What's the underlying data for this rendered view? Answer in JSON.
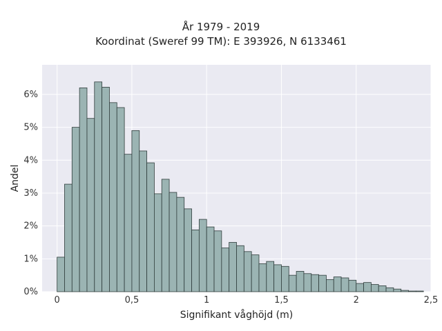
{
  "chart_data": {
    "type": "histogram",
    "title": "År 1979 - 2019",
    "subtitle": "Koordinat (Sweref 99 TM): E 393926, N 6133461",
    "xlabel": "Signifikant våghöjd (m)",
    "ylabel": "Andel",
    "xlim": [
      -0.1,
      2.5
    ],
    "ylim": [
      0,
      6.9
    ],
    "xticks": [
      0,
      0.5,
      1,
      1.5,
      2,
      2.5
    ],
    "xtick_labels": [
      "0",
      "0,5",
      "1",
      "1,5",
      "2",
      "2,5"
    ],
    "yticks": [
      0,
      1,
      2,
      3,
      4,
      5,
      6
    ],
    "ytick_labels": [
      "0%",
      "1%",
      "2%",
      "3%",
      "4%",
      "5%",
      "6%"
    ],
    "grid": true,
    "bin_width": 0.05,
    "bin_start": 0,
    "values": [
      1.05,
      3.27,
      5.0,
      6.2,
      5.27,
      6.38,
      6.22,
      5.75,
      5.6,
      4.18,
      4.9,
      4.28,
      3.92,
      2.98,
      3.42,
      3.02,
      2.87,
      2.52,
      1.88,
      2.2,
      1.97,
      1.85,
      1.33,
      1.5,
      1.4,
      1.22,
      1.12,
      0.85,
      0.92,
      0.82,
      0.77,
      0.5,
      0.62,
      0.55,
      0.52,
      0.5,
      0.37,
      0.45,
      0.42,
      0.35,
      0.25,
      0.28,
      0.22,
      0.18,
      0.12,
      0.08,
      0.04,
      0.02,
      0.02
    ],
    "colors": {
      "bar_fill": "#9bb4b3",
      "bar_stroke": "#2f3c3b",
      "plot_bg": "#eaeaf2",
      "grid": "#ffffff"
    }
  }
}
